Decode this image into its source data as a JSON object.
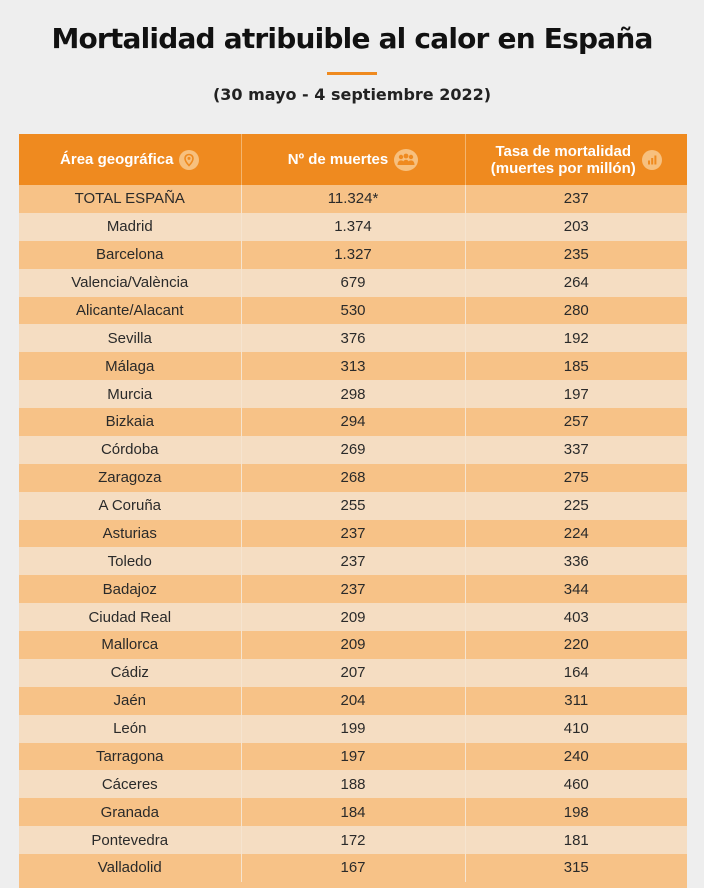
{
  "header": {
    "title": "Mortalidad atribuible al calor en España",
    "subtitle": "(30 mayo - 4 septiembre 2022)"
  },
  "colors": {
    "accent": "#ef8a1f",
    "row_dark": "#f7c287",
    "row_light": "#f5ddc2"
  },
  "table": {
    "headers": {
      "area": "Área geográfica",
      "deaths": "Nº de muertes",
      "rate_line1": "Tasa de mortalidad",
      "rate_line2": "(muertes por millón)"
    },
    "header_icons": [
      "location-pin-icon",
      "people-group-icon",
      "bar-chart-icon"
    ]
  },
  "chart_data": {
    "type": "table",
    "title": "Mortalidad atribuible al calor en España",
    "subtitle": "(30 mayo - 4 septiembre 2022)",
    "columns": [
      "Área geográfica",
      "Nº de muertes",
      "Tasa de mortalidad (muertes por millón)"
    ],
    "rows": [
      [
        "TOTAL ESPAÑA",
        "11.324*",
        "237"
      ],
      [
        "Madrid",
        "1.374",
        "203"
      ],
      [
        "Barcelona",
        "1.327",
        "235"
      ],
      [
        "Valencia/València",
        "679",
        "264"
      ],
      [
        "Alicante/Alacant",
        "530",
        "280"
      ],
      [
        "Sevilla",
        "376",
        "192"
      ],
      [
        "Málaga",
        "313",
        "185"
      ],
      [
        "Murcia",
        "298",
        "197"
      ],
      [
        "Bizkaia",
        "294",
        "257"
      ],
      [
        "Córdoba",
        "269",
        "337"
      ],
      [
        "Zaragoza",
        "268",
        "275"
      ],
      [
        "A Coruña",
        "255",
        "225"
      ],
      [
        "Asturias",
        "237",
        "224"
      ],
      [
        "Toledo",
        "237",
        "336"
      ],
      [
        "Badajoz",
        "237",
        "344"
      ],
      [
        "Ciudad Real",
        "209",
        "403"
      ],
      [
        "Mallorca",
        "209",
        "220"
      ],
      [
        "Cádiz",
        "207",
        "164"
      ],
      [
        "Jaén",
        "204",
        "311"
      ],
      [
        "León",
        "199",
        "410"
      ],
      [
        "Tarragona",
        "197",
        "240"
      ],
      [
        "Cáceres",
        "188",
        "460"
      ],
      [
        "Granada",
        "184",
        "198"
      ],
      [
        "Pontevedra",
        "172",
        "181"
      ],
      [
        "Valladolid",
        "167",
        "315"
      ]
    ]
  }
}
